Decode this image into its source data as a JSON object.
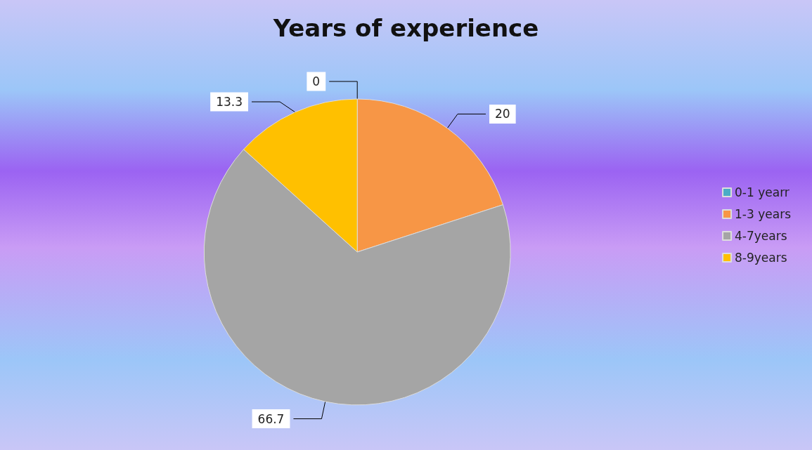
{
  "chart_data": {
    "type": "pie",
    "title": "Years of experience",
    "categories": [
      "0-1 yearr",
      "1-3 years",
      "4-7years",
      "8-9years"
    ],
    "values": [
      0,
      20,
      66.7,
      13.3
    ],
    "colors": [
      "#4bacc6",
      "#f79646",
      "#a5a5a5",
      "#ffc000"
    ],
    "value_labels": [
      "0",
      "20",
      "66.7",
      "13.3"
    ],
    "legend": "right"
  }
}
